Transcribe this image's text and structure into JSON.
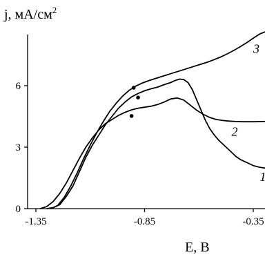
{
  "chart_data": {
    "type": "line",
    "title": "",
    "ylabel_main": "j, мА/см",
    "ylabel_sup": "2",
    "xlabel": "E, B",
    "xlim": [
      -1.35,
      -0.25
    ],
    "ylim": [
      0,
      9.0
    ],
    "xticks": [
      {
        "value": -1.35,
        "label": "-1.35"
      },
      {
        "value": -0.85,
        "label": "-0.85"
      },
      {
        "value": -0.35,
        "label": "-0.35"
      }
    ],
    "yticks": [
      {
        "value": 0,
        "label": "0"
      },
      {
        "value": 3,
        "label": "3"
      },
      {
        "value": 6,
        "label": "6"
      }
    ],
    "series": [
      {
        "name": "1",
        "x": [
          -1.3,
          -1.27,
          -1.24,
          -1.21,
          -1.18,
          -1.15,
          -1.12,
          -1.09,
          -1.06,
          -1.03,
          -1.0,
          -0.97,
          -0.94,
          -0.91,
          -0.88,
          -0.85,
          -0.82,
          -0.79,
          -0.76,
          -0.73,
          -0.71,
          -0.69,
          -0.67,
          -0.65,
          -0.63,
          -0.61,
          -0.59,
          -0.57,
          -0.55,
          -0.53,
          -0.51,
          -0.49,
          -0.47,
          -0.45,
          -0.43,
          -0.41,
          -0.39,
          -0.37,
          -0.35,
          -0.32,
          -0.29,
          -0.26
        ],
        "y": [
          0.0,
          0.05,
          0.2,
          0.6,
          1.1,
          1.8,
          2.5,
          3.1,
          3.6,
          4.1,
          4.5,
          4.9,
          5.2,
          5.45,
          5.62,
          5.75,
          5.85,
          5.93,
          6.05,
          6.15,
          6.25,
          6.32,
          6.3,
          6.15,
          5.8,
          5.3,
          4.8,
          4.3,
          3.9,
          3.6,
          3.35,
          3.15,
          2.95,
          2.75,
          2.55,
          2.4,
          2.3,
          2.2,
          2.1,
          2.02,
          1.97,
          1.95
        ]
      },
      {
        "name": "2",
        "x": [
          -1.33,
          -1.3,
          -1.27,
          -1.24,
          -1.21,
          -1.18,
          -1.15,
          -1.12,
          -1.09,
          -1.06,
          -1.03,
          -1.0,
          -0.97,
          -0.94,
          -0.91,
          -0.88,
          -0.85,
          -0.82,
          -0.79,
          -0.76,
          -0.73,
          -0.7,
          -0.67,
          -0.64,
          -0.61,
          -0.58,
          -0.55,
          -0.52,
          -0.49,
          -0.46,
          -0.43,
          -0.4,
          -0.37,
          -0.34,
          -0.31,
          -0.28
        ],
        "y": [
          0.0,
          0.1,
          0.35,
          0.75,
          1.25,
          1.85,
          2.45,
          3.0,
          3.45,
          3.85,
          4.15,
          4.35,
          4.55,
          4.7,
          4.82,
          4.9,
          4.95,
          5.0,
          5.08,
          5.2,
          5.35,
          5.4,
          5.3,
          5.05,
          4.8,
          4.6,
          4.45,
          4.35,
          4.3,
          4.27,
          4.25,
          4.24,
          4.24,
          4.24,
          4.25,
          4.26
        ]
      },
      {
        "name": "3",
        "x": [
          -1.28,
          -1.25,
          -1.22,
          -1.19,
          -1.16,
          -1.13,
          -1.1,
          -1.07,
          -1.04,
          -1.01,
          -0.98,
          -0.95,
          -0.92,
          -0.89,
          -0.86,
          -0.83,
          -0.8,
          -0.77,
          -0.74,
          -0.71,
          -0.68,
          -0.65,
          -0.62,
          -0.59,
          -0.56,
          -0.53,
          -0.5,
          -0.47,
          -0.44,
          -0.41,
          -0.38,
          -0.35,
          -0.32,
          -0.29
        ],
        "y": [
          0.0,
          0.15,
          0.55,
          1.1,
          1.75,
          2.45,
          3.1,
          3.7,
          4.25,
          4.75,
          5.15,
          5.5,
          5.78,
          5.98,
          6.13,
          6.25,
          6.35,
          6.45,
          6.55,
          6.65,
          6.75,
          6.85,
          6.95,
          7.05,
          7.15,
          7.27,
          7.4,
          7.55,
          7.72,
          7.9,
          8.1,
          8.32,
          8.52,
          8.65
        ]
      }
    ],
    "markers": [
      {
        "series": "1",
        "x": -0.88,
        "y": 5.42
      },
      {
        "series": "2",
        "x": -0.91,
        "y": 4.52
      },
      {
        "series": "3",
        "x": -0.9,
        "y": 5.9
      }
    ],
    "series_labels": [
      {
        "text": "1",
        "x": -0.32,
        "y": 1.35
      },
      {
        "text": "2",
        "x": -0.45,
        "y": 3.55
      },
      {
        "text": "3",
        "x": -0.35,
        "y": 7.6
      }
    ],
    "grid": false,
    "legend": "none"
  }
}
